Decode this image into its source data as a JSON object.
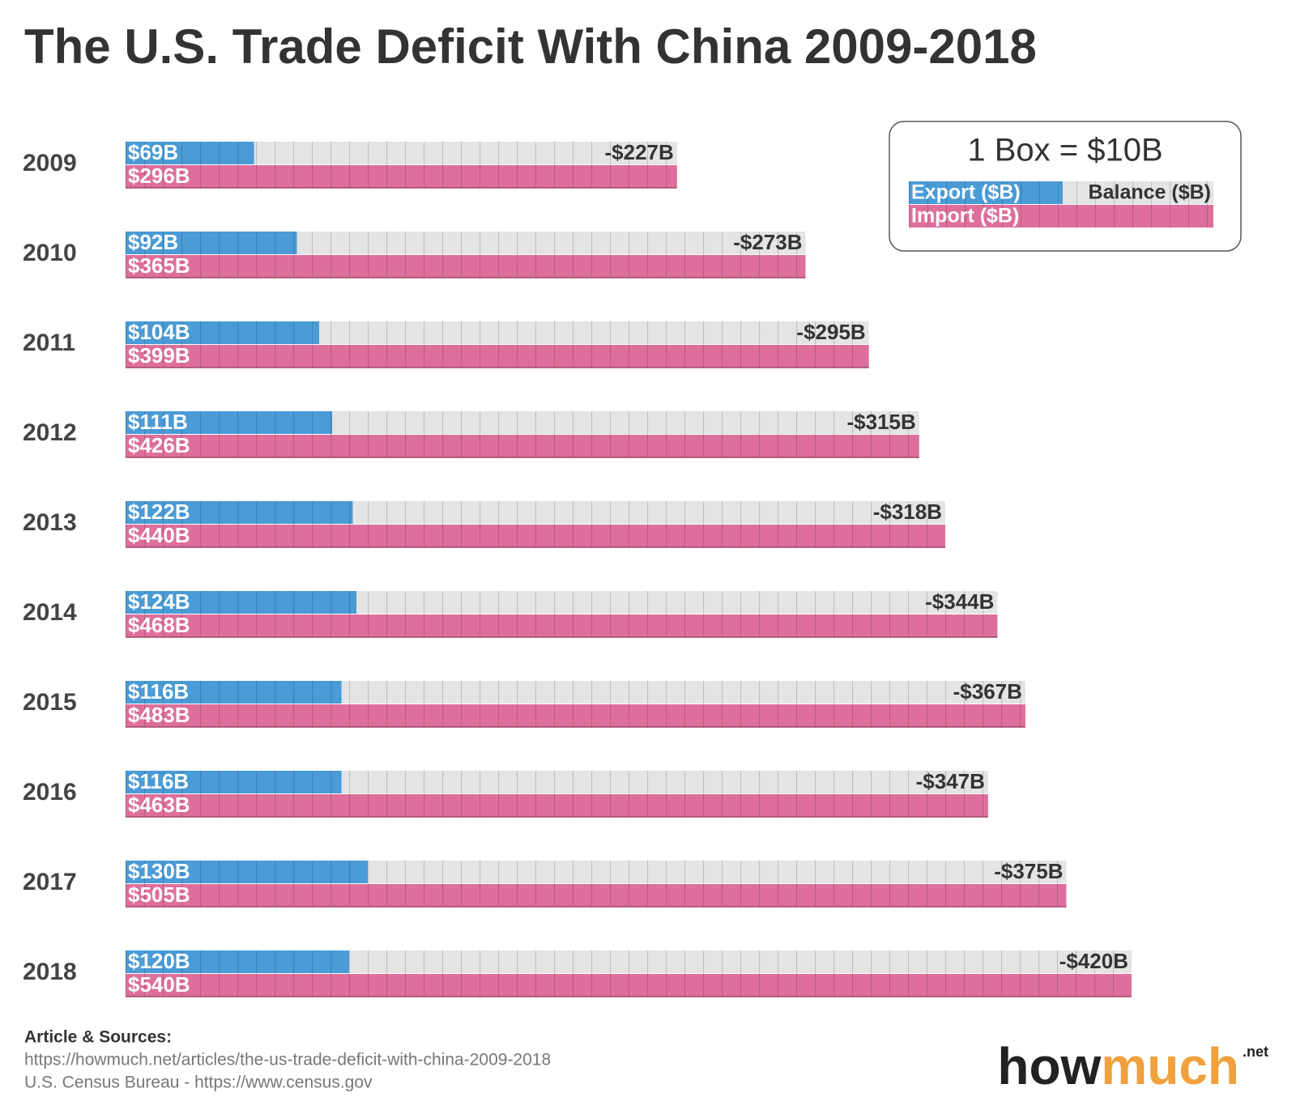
{
  "chart_data": {
    "type": "bar",
    "title": "The U.S. Trade Deficit With China 2009-2018",
    "box_size": {
      "value": 10,
      "label": "1 Box = $10B"
    },
    "categories": [
      "2009",
      "2010",
      "2011",
      "2012",
      "2013",
      "2014",
      "2015",
      "2016",
      "2017",
      "2018"
    ],
    "series": [
      {
        "name": "Export ($B)",
        "color": "#4a9bd6",
        "values": [
          69,
          92,
          104,
          111,
          122,
          124,
          116,
          116,
          130,
          120
        ],
        "value_labels": [
          "$69B",
          "$92B",
          "$104B",
          "$111B",
          "$122B",
          "$124B",
          "$116B",
          "$116B",
          "$130B",
          "$120B"
        ]
      },
      {
        "name": "Import ($B)",
        "color": "#de6f9c",
        "values": [
          296,
          365,
          399,
          426,
          440,
          468,
          483,
          463,
          505,
          540
        ],
        "value_labels": [
          "$296B",
          "$365B",
          "$399B",
          "$426B",
          "$440B",
          "$468B",
          "$483B",
          "$463B",
          "$505B",
          "$540B"
        ]
      },
      {
        "name": "Balance ($B)",
        "color": "#e4e4e4",
        "values": [
          -227,
          -273,
          -295,
          -315,
          -318,
          -344,
          -367,
          -347,
          -375,
          -420
        ],
        "value_labels": [
          "-$227B",
          "-$273B",
          "-$295B",
          "-$315B",
          "-$318B",
          "-$344B",
          "-$367B",
          "-$347B",
          "-$375B",
          "-$420B"
        ]
      }
    ],
    "source_title": "Article & Sources:",
    "sources": [
      "https://howmuch.net/articles/the-us-trade-deficit-with-china-2009-2018",
      "U.S. Census Bureau - https://www.census.gov"
    ],
    "brand": [
      "how",
      "much"
    ],
    "brand_suffix": ".net"
  }
}
